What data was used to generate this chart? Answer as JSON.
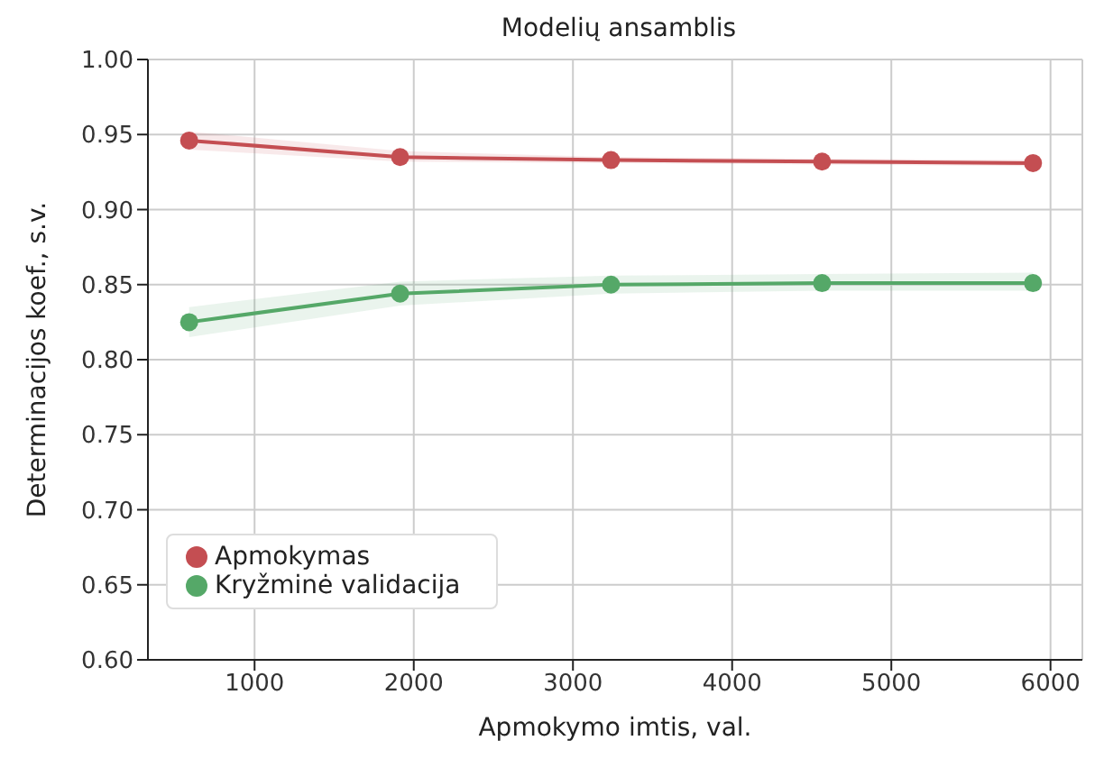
{
  "chart_data": {
    "type": "line",
    "title": "Modelių ansamblis",
    "xlabel": "Apmokymo imtis, val.",
    "ylabel": "Determinacijos koef., s.v.",
    "x": [
      589,
      1914,
      3239,
      4565,
      5890
    ],
    "series": [
      {
        "name": "Apmokymas",
        "color": "#c44e52",
        "values": [
          0.946,
          0.935,
          0.933,
          0.932,
          0.931
        ],
        "lower": [
          0.94,
          0.932,
          0.931,
          0.93,
          0.929
        ],
        "upper": [
          0.952,
          0.939,
          0.935,
          0.934,
          0.933
        ]
      },
      {
        "name": "Kryžminė validacija",
        "color": "#55a868",
        "values": [
          0.825,
          0.844,
          0.85,
          0.851,
          0.851
        ],
        "lower": [
          0.815,
          0.836,
          0.844,
          0.846,
          0.846
        ],
        "upper": [
          0.835,
          0.852,
          0.856,
          0.857,
          0.858
        ]
      }
    ],
    "xlim": [
      330,
      6200
    ],
    "xticks": [
      1000,
      2000,
      3000,
      4000,
      5000,
      6000
    ],
    "ylim": [
      0.6,
      1.0
    ],
    "yticks": [
      {
        "value": 0.6,
        "label": "0.60"
      },
      0.65,
      {
        "value": 0.7,
        "label": "0.70"
      },
      0.75,
      {
        "value": 0.8,
        "label": "0.80"
      },
      0.85,
      {
        "value": 0.9,
        "label": "0.90"
      },
      0.95,
      {
        "value": 1.0,
        "label": "1.00"
      }
    ],
    "grid": true,
    "legend": "bottom left",
    "marker": "circle",
    "line_style": "solid"
  }
}
